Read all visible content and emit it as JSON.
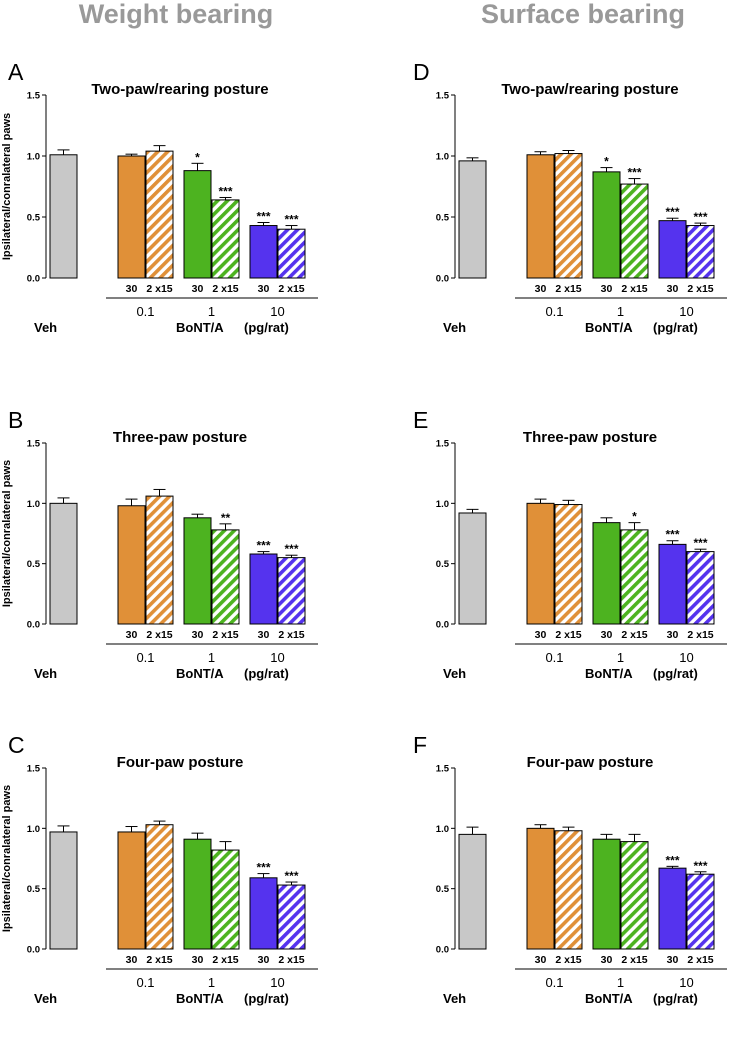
{
  "column_titles": [
    "Weight bearing",
    "Surface bearing"
  ],
  "colors": {
    "veh": "#c8c8c8",
    "dose_0_1": "#e09038",
    "dose_1": "#4db320",
    "dose_10": "#5533ee",
    "title_gray": "#999999"
  },
  "shared_labels": {
    "veh_label": "Veh",
    "group_sizes": [
      "30",
      "2 x15"
    ],
    "concentrations": [
      "0.1",
      "1",
      "10"
    ],
    "compound_label": "BoNT/A",
    "unit_label": "(pg/rat)"
  },
  "chart_data": [
    {
      "type": "bar",
      "panel": "A",
      "title": "Two-paw/rearing posture",
      "ylabel": "Ipsilateral/conralateral paws",
      "ylim": [
        0,
        1.5
      ],
      "yticks": [
        "0.0",
        "0.5",
        "1.0",
        "1.5"
      ],
      "categories": [
        "Veh",
        "0.1 / 30",
        "0.1 / 2 x15",
        "1 / 30",
        "1 / 2 x15",
        "10 / 30",
        "10 / 2 x15"
      ],
      "values": [
        1.01,
        1.0,
        1.04,
        0.88,
        0.64,
        0.43,
        0.4
      ],
      "errors": [
        0.04,
        0.015,
        0.045,
        0.06,
        0.02,
        0.025,
        0.03
      ],
      "significance": [
        "",
        "",
        "",
        "*",
        "***",
        "***",
        "***"
      ]
    },
    {
      "type": "bar",
      "panel": "B",
      "title": "Three-paw posture",
      "ylabel": "Ipsilateral/conralateral paws",
      "ylim": [
        0,
        1.5
      ],
      "yticks": [
        "0.0",
        "0.5",
        "1.0",
        "1.5"
      ],
      "categories": [
        "Veh",
        "0.1 / 30",
        "0.1 / 2 x15",
        "1 / 30",
        "1 / 2 x15",
        "10 / 30",
        "10 / 2 x15"
      ],
      "values": [
        1.0,
        0.98,
        1.06,
        0.88,
        0.78,
        0.58,
        0.55
      ],
      "errors": [
        0.045,
        0.055,
        0.055,
        0.03,
        0.05,
        0.02,
        0.02
      ],
      "significance": [
        "",
        "",
        "",
        "",
        "**",
        "***",
        "***"
      ]
    },
    {
      "type": "bar",
      "panel": "C",
      "title": "Four-paw posture",
      "ylabel": "Ipsilateral/conralateral paws",
      "ylim": [
        0,
        1.5
      ],
      "yticks": [
        "0.0",
        "0.5",
        "1.0",
        "1.5"
      ],
      "categories": [
        "Veh",
        "0.1 / 30",
        "0.1 / 2 x15",
        "1 / 30",
        "1 / 2 x15",
        "10 / 30",
        "10 / 2 x15"
      ],
      "values": [
        0.97,
        0.97,
        1.03,
        0.91,
        0.82,
        0.59,
        0.53
      ],
      "errors": [
        0.05,
        0.045,
        0.03,
        0.05,
        0.07,
        0.035,
        0.025
      ],
      "significance": [
        "",
        "",
        "",
        "",
        "",
        "***",
        "***"
      ]
    },
    {
      "type": "bar",
      "panel": "D",
      "title": "Two-paw/rearing posture",
      "ylabel": "",
      "ylim": [
        0,
        1.5
      ],
      "yticks": [
        "0.0",
        "0.5",
        "1.0",
        "1.5"
      ],
      "categories": [
        "Veh",
        "0.1 / 30",
        "0.1 / 2 x15",
        "1 / 30",
        "1 / 2 x15",
        "10 / 30",
        "10 / 2 x15"
      ],
      "values": [
        0.96,
        1.01,
        1.02,
        0.87,
        0.77,
        0.47,
        0.43
      ],
      "errors": [
        0.025,
        0.025,
        0.025,
        0.035,
        0.045,
        0.02,
        0.02
      ],
      "significance": [
        "",
        "",
        "",
        "*",
        "***",
        "***",
        "***"
      ]
    },
    {
      "type": "bar",
      "panel": "E",
      "title": "Three-paw posture",
      "ylabel": "",
      "ylim": [
        0,
        1.5
      ],
      "yticks": [
        "0.0",
        "0.5",
        "1.0",
        "1.5"
      ],
      "categories": [
        "Veh",
        "0.1 / 30",
        "0.1 / 2 x15",
        "1 / 30",
        "1 / 2 x15",
        "10 / 30",
        "10 / 2 x15"
      ],
      "values": [
        0.92,
        1.0,
        0.99,
        0.84,
        0.78,
        0.66,
        0.6
      ],
      "errors": [
        0.03,
        0.035,
        0.035,
        0.04,
        0.06,
        0.03,
        0.02
      ],
      "significance": [
        "",
        "",
        "",
        "",
        "*",
        "***",
        "***"
      ]
    },
    {
      "type": "bar",
      "panel": "F",
      "title": "Four-paw posture",
      "ylabel": "",
      "ylim": [
        0,
        1.5
      ],
      "yticks": [
        "0.0",
        "0.5",
        "1.0",
        "1.5"
      ],
      "categories": [
        "Veh",
        "0.1 / 30",
        "0.1 / 2 x15",
        "1 / 30",
        "1 / 2 x15",
        "10 / 30",
        "10 / 2 x15"
      ],
      "values": [
        0.95,
        1.0,
        0.98,
        0.91,
        0.89,
        0.67,
        0.62
      ],
      "errors": [
        0.06,
        0.03,
        0.03,
        0.04,
        0.06,
        0.015,
        0.02
      ],
      "significance": [
        "",
        "",
        "",
        "",
        "",
        "***",
        "***"
      ]
    }
  ]
}
